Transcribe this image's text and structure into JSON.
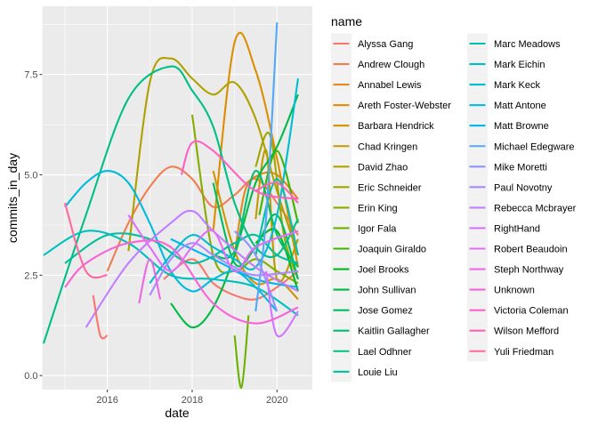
{
  "chart_data": {
    "type": "line",
    "title": "",
    "xlabel": "date",
    "ylabel": "commits_in_day",
    "x_ticks": [
      "2016",
      "2018",
      "2020"
    ],
    "y_ticks": [
      "0.0",
      "2.5",
      "5.0",
      "7.5"
    ],
    "xlim": [
      "2014-06-20",
      "2020-11-01"
    ],
    "ylim": [
      -0.35,
      9.2
    ],
    "grid": true,
    "legend": {
      "title": "name",
      "position": "right",
      "columns": 2
    },
    "series": [
      {
        "name": "Alyssa Gang",
        "color": "#F8766D",
        "points": [
          [
            "2017-05-01",
            2.4
          ],
          [
            "2018-01-01",
            2.9
          ],
          [
            "2018-07-01",
            2.3
          ],
          [
            "2019-01-01",
            2.0
          ],
          [
            "2019-07-01",
            1.9
          ],
          [
            "2020-01-01",
            2.2
          ],
          [
            "2020-07-01",
            2.6
          ]
        ]
      },
      {
        "name": "Andrew Clough",
        "color": "#F17D52",
        "points": [
          [
            "2016-01-01",
            2.6
          ],
          [
            "2016-07-01",
            3.8
          ],
          [
            "2017-01-01",
            4.7
          ],
          [
            "2017-07-01",
            5.2
          ],
          [
            "2018-01-01",
            4.9
          ],
          [
            "2018-07-01",
            4.2
          ],
          [
            "2019-01-01",
            4.5
          ],
          [
            "2019-07-01",
            4.9
          ],
          [
            "2020-01-01",
            4.3
          ],
          [
            "2020-07-01",
            3.5
          ]
        ]
      },
      {
        "name": "Annabel Lewis",
        "color": "#E7861B",
        "points": [
          [
            "2019-01-01",
            3.0
          ],
          [
            "2019-04-01",
            4.6
          ],
          [
            "2019-08-01",
            5.0
          ],
          [
            "2020-01-01",
            5.0
          ],
          [
            "2020-07-01",
            4.4
          ]
        ]
      },
      {
        "name": "Areth Foster-Webster",
        "color": "#DC8E00",
        "points": [
          [
            "2018-07-01",
            3.6
          ],
          [
            "2019-01-01",
            8.3
          ],
          [
            "2019-07-01",
            7.6
          ],
          [
            "2020-01-01",
            5.4
          ],
          [
            "2020-07-01",
            2.7
          ]
        ]
      },
      {
        "name": "Barbara Hendrick",
        "color": "#CF9400",
        "points": [
          [
            "2018-07-01",
            5.1
          ],
          [
            "2019-01-01",
            3.1
          ],
          [
            "2019-07-01",
            2.3
          ],
          [
            "2020-01-01",
            2.4
          ],
          [
            "2020-07-01",
            1.9
          ]
        ]
      },
      {
        "name": "Chad Kringen",
        "color": "#C09B00",
        "points": [
          [
            "2019-07-01",
            3.9
          ],
          [
            "2019-10-01",
            5.6
          ],
          [
            "2020-01-01",
            2.4
          ],
          [
            "2020-07-01",
            3.4
          ]
        ]
      },
      {
        "name": "David Zhao",
        "color": "#AFA100",
        "points": [
          [
            "2016-07-01",
            3.1
          ],
          [
            "2017-01-01",
            7.3
          ],
          [
            "2017-07-01",
            7.9
          ],
          [
            "2018-01-01",
            7.4
          ],
          [
            "2018-07-01",
            7.0
          ],
          [
            "2019-01-01",
            7.3
          ],
          [
            "2019-07-01",
            6.4
          ],
          [
            "2020-01-01",
            4.6
          ],
          [
            "2020-07-01",
            3.0
          ]
        ]
      },
      {
        "name": "Eric Schneider",
        "color": "#9DA700",
        "points": [
          [
            "2019-07-01",
            5.2
          ],
          [
            "2019-11-01",
            6.0
          ],
          [
            "2020-03-01",
            3.5
          ],
          [
            "2020-07-01",
            2.4
          ]
        ]
      },
      {
        "name": "Erin King",
        "color": "#87AC00",
        "points": [
          [
            "2018-01-01",
            6.5
          ],
          [
            "2018-07-01",
            3.0
          ],
          [
            "2019-01-01",
            2.6
          ],
          [
            "2019-07-01",
            2.9
          ],
          [
            "2020-01-01",
            2.6
          ],
          [
            "2020-07-01",
            2.3
          ]
        ]
      },
      {
        "name": "Igor Fala",
        "color": "#6BB100",
        "points": [
          [
            "2019-01-01",
            1.0
          ],
          [
            "2019-03-01",
            -0.3
          ],
          [
            "2019-05-01",
            1.5
          ]
        ]
      },
      {
        "name": "Joaquin Giraldo",
        "color": "#3EB400",
        "points": [
          [
            "2019-08-01",
            4.0
          ],
          [
            "2020-01-01",
            5.6
          ],
          [
            "2020-07-01",
            3.8
          ]
        ]
      },
      {
        "name": "Joel Brooks",
        "color": "#00B81F",
        "points": [
          [
            "2019-07-01",
            3.3
          ],
          [
            "2020-01-01",
            3.6
          ],
          [
            "2020-07-01",
            2.1
          ]
        ]
      },
      {
        "name": "John Sullivan",
        "color": "#00BA42",
        "points": [
          [
            "2017-07-01",
            1.8
          ],
          [
            "2018-01-01",
            1.2
          ],
          [
            "2018-07-01",
            1.7
          ],
          [
            "2019-01-01",
            3.0
          ],
          [
            "2019-07-01",
            4.8
          ],
          [
            "2020-01-01",
            5.7
          ],
          [
            "2020-07-01",
            7.0
          ]
        ]
      },
      {
        "name": "Jose Gomez",
        "color": "#00BC5B",
        "points": [
          [
            "2018-07-01",
            4.8
          ],
          [
            "2019-01-01",
            2.8
          ],
          [
            "2019-07-01",
            3.2
          ],
          [
            "2020-01-01",
            4.0
          ],
          [
            "2020-07-01",
            2.4
          ]
        ]
      },
      {
        "name": "Kaitlin Gallagher",
        "color": "#00BE71",
        "points": [
          [
            "2018-07-01",
            3.0
          ],
          [
            "2019-01-01",
            3.1
          ],
          [
            "2019-07-01",
            5.1
          ],
          [
            "2020-01-01",
            3.5
          ],
          [
            "2020-07-01",
            2.7
          ]
        ]
      },
      {
        "name": "Lael Odhner",
        "color": "#00BF86",
        "points": [
          [
            "2014-07-01",
            0.8
          ],
          [
            "2015-07-01",
            4.0
          ],
          [
            "2016-07-01",
            6.9
          ],
          [
            "2017-07-01",
            7.7
          ],
          [
            "2018-01-01",
            7.1
          ],
          [
            "2018-07-01",
            6.2
          ],
          [
            "2019-01-01",
            4.3
          ],
          [
            "2019-07-01",
            3.2
          ],
          [
            "2020-01-01",
            3.0
          ],
          [
            "2020-07-01",
            3.9
          ]
        ]
      },
      {
        "name": "Louie Liu",
        "color": "#00C09A",
        "points": [
          [
            "2015-01-01",
            2.8
          ],
          [
            "2016-01-01",
            3.5
          ],
          [
            "2017-01-01",
            3.4
          ],
          [
            "2018-01-01",
            2.8
          ],
          [
            "2019-01-01",
            3.3
          ],
          [
            "2019-07-01",
            3.5
          ],
          [
            "2020-01-01",
            3.0
          ],
          [
            "2020-07-01",
            2.8
          ]
        ]
      },
      {
        "name": "Marc Meadows",
        "color": "#00C0AD",
        "points": [
          [
            "2019-07-01",
            3.0
          ],
          [
            "2020-01-01",
            4.9
          ],
          [
            "2020-07-01",
            3.0
          ]
        ]
      },
      {
        "name": "Mark Eichin",
        "color": "#00BFBF",
        "points": [
          [
            "2014-07-01",
            3.0
          ],
          [
            "2015-07-01",
            3.6
          ],
          [
            "2016-07-01",
            3.3
          ],
          [
            "2017-07-01",
            2.5
          ],
          [
            "2018-07-01",
            2.4
          ],
          [
            "2019-07-01",
            2.2
          ],
          [
            "2020-07-01",
            1.5
          ]
        ]
      },
      {
        "name": "Mark Keck",
        "color": "#00BDD0",
        "points": [
          [
            "2017-01-01",
            2.3
          ],
          [
            "2017-07-01",
            3.0
          ],
          [
            "2018-01-01",
            3.5
          ],
          [
            "2018-07-01",
            3.2
          ],
          [
            "2019-01-01",
            2.9
          ],
          [
            "2019-07-01",
            2.7
          ],
          [
            "2020-01-01",
            4.0
          ],
          [
            "2020-07-01",
            7.4
          ]
        ]
      },
      {
        "name": "Matt Antone",
        "color": "#00BAE0",
        "points": [
          [
            "2015-01-01",
            4.2
          ],
          [
            "2015-07-01",
            4.8
          ],
          [
            "2016-01-01",
            5.1
          ],
          [
            "2016-07-01",
            4.8
          ],
          [
            "2017-01-01",
            3.8
          ],
          [
            "2017-07-01",
            2.6
          ],
          [
            "2018-01-01",
            2.1
          ],
          [
            "2018-07-01",
            2.4
          ],
          [
            "2019-01-01",
            2.6
          ],
          [
            "2019-07-01",
            2.2
          ],
          [
            "2020-01-01",
            1.6
          ]
        ]
      },
      {
        "name": "Matt Browne",
        "color": "#00B4EF",
        "points": [
          [
            "2017-07-01",
            3.4
          ],
          [
            "2018-07-01",
            2.9
          ],
          [
            "2019-07-01",
            2.4
          ],
          [
            "2020-07-01",
            2.2
          ]
        ]
      },
      {
        "name": "Michael Edegware",
        "color": "#52A9F9",
        "points": [
          [
            "2019-07-01",
            1.6
          ],
          [
            "2019-10-01",
            4.0
          ],
          [
            "2020-01-01",
            8.8
          ]
        ]
      },
      {
        "name": "Mike Moretti",
        "color": "#8B93FF",
        "points": [
          [
            "2019-01-01",
            3.6
          ],
          [
            "2019-07-01",
            3.0
          ],
          [
            "2020-01-01",
            1.6
          ]
        ]
      },
      {
        "name": "Paul Novotny",
        "color": "#A98AFF",
        "points": [
          [
            "2017-01-01",
            2.0
          ],
          [
            "2017-07-01",
            2.9
          ],
          [
            "2018-01-01",
            3.3
          ],
          [
            "2018-07-01",
            3.0
          ],
          [
            "2019-01-01",
            2.7
          ],
          [
            "2019-07-01",
            2.5
          ],
          [
            "2020-07-01",
            2.6
          ]
        ]
      },
      {
        "name": "Rebecca Mcbrayer",
        "color": "#C17FFF",
        "points": [
          [
            "2015-07-01",
            1.2
          ],
          [
            "2016-07-01",
            2.8
          ],
          [
            "2017-07-01",
            3.8
          ],
          [
            "2018-01-01",
            4.1
          ],
          [
            "2018-07-01",
            3.6
          ],
          [
            "2019-07-01",
            2.7
          ],
          [
            "2020-07-01",
            2.1
          ]
        ]
      },
      {
        "name": "RightHand",
        "color": "#D474FF",
        "points": [
          [
            "2019-10-01",
            2.6
          ],
          [
            "2020-01-01",
            1.0
          ],
          [
            "2020-07-01",
            1.6
          ]
        ]
      },
      {
        "name": "Robert Beaudoin",
        "color": "#E26EF7",
        "points": [
          [
            "2016-07-01",
            4.0
          ],
          [
            "2017-01-01",
            3.2
          ],
          [
            "2017-07-01",
            2.6
          ],
          [
            "2018-01-01",
            3.2
          ],
          [
            "2018-07-01",
            3.6
          ],
          [
            "2019-01-01",
            2.6
          ],
          [
            "2019-07-01",
            3.2
          ],
          [
            "2020-07-01",
            3.6
          ]
        ]
      },
      {
        "name": "Steph Northway",
        "color": "#EE67E6",
        "points": [
          [
            "2016-10-01",
            1.8
          ],
          [
            "2017-01-01",
            2.9
          ],
          [
            "2017-04-01",
            1.9
          ]
        ]
      },
      {
        "name": "Unknown",
        "color": "#F763D8",
        "points": [
          [
            "2015-01-01",
            2.2
          ],
          [
            "2015-07-01",
            2.8
          ],
          [
            "2016-07-01",
            3.3
          ],
          [
            "2017-07-01",
            3.2
          ],
          [
            "2018-07-01",
            1.8
          ],
          [
            "2019-07-01",
            1.3
          ],
          [
            "2020-07-01",
            1.7
          ]
        ]
      },
      {
        "name": "Victoria Coleman",
        "color": "#FD61C7",
        "points": [
          [
            "2017-10-01",
            5.0
          ],
          [
            "2018-01-01",
            5.8
          ],
          [
            "2018-07-01",
            5.6
          ],
          [
            "2019-07-01",
            4.6
          ],
          [
            "2020-07-01",
            4.4
          ]
        ]
      },
      {
        "name": "Wilson Mefford",
        "color": "#FF63B3",
        "points": [
          [
            "2019-07-01",
            4.6
          ],
          [
            "2020-01-01",
            4.8
          ],
          [
            "2020-07-01",
            4.3
          ]
        ]
      },
      {
        "name": "Yuli Friedman",
        "color": "#FF689E",
        "points": [
          [
            "2015-01-01",
            4.3
          ],
          [
            "2015-07-01",
            2.6
          ],
          [
            "2016-01-01",
            2.5
          ]
        ]
      },
      {
        "name": "",
        "color": "#F8766D",
        "points": [
          [
            "2015-09-01",
            2.0
          ],
          [
            "2015-11-01",
            1.0
          ],
          [
            "2016-01-01",
            1.0
          ]
        ]
      }
    ]
  }
}
